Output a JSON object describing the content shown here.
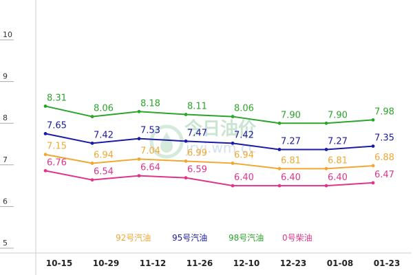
{
  "chart_data": {
    "type": "line",
    "title": "",
    "xlabel": "",
    "ylabel": "",
    "categories": [
      "10-15",
      "10-29",
      "11-12",
      "11-26",
      "12-10",
      "12-23",
      "01-08",
      "01-23"
    ],
    "y_ticks": [
      5,
      6,
      7,
      8,
      9,
      10
    ],
    "ylim": [
      5,
      10
    ],
    "grid": false,
    "legend_position": "bottom",
    "series": [
      {
        "name": "92号汽油",
        "color": "#f0a830",
        "values": [
          7.15,
          6.94,
          7.04,
          6.99,
          6.94,
          6.81,
          6.81,
          6.88
        ],
        "labels": [
          "7.15",
          "6.94",
          "7.04",
          "6.99",
          "6.94",
          "6.81",
          "6.81",
          "6.88"
        ]
      },
      {
        "name": "95号汽油",
        "color": "#1a1aa6",
        "values": [
          7.65,
          7.42,
          7.53,
          7.47,
          7.42,
          7.27,
          7.27,
          7.35
        ],
        "labels": [
          "7.65",
          "7.42",
          "7.53",
          "7.47",
          "7.42",
          "7.27",
          "7.27",
          "7.35"
        ]
      },
      {
        "name": "98号汽油",
        "color": "#2aa52a",
        "values": [
          8.31,
          8.06,
          8.18,
          8.11,
          8.06,
          7.9,
          7.9,
          7.98
        ],
        "labels": [
          "8.31",
          "8.06",
          "8.18",
          "8.11",
          "8.06",
          "7.90",
          "7.90",
          "7.98"
        ]
      },
      {
        "name": "0号柴油",
        "color": "#e0338a",
        "values": [
          6.76,
          6.54,
          6.64,
          6.59,
          6.4,
          6.4,
          6.4,
          6.47
        ],
        "labels": [
          "6.76",
          "6.54",
          "6.64",
          "6.59",
          "6.40",
          "6.40",
          "6.40",
          "6.47"
        ]
      }
    ]
  },
  "watermark": {
    "title": "今日油价",
    "url": "jryj.wm.cc"
  }
}
